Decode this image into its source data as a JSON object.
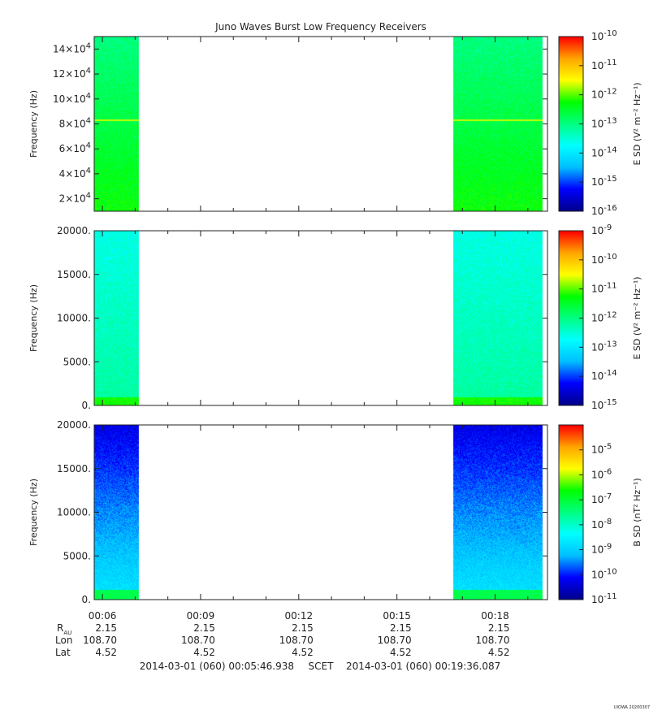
{
  "title": "Juno Waves Burst Low Frequency Receivers",
  "colors": {
    "axis": "#222222",
    "background": "#ffffff",
    "gap": "#ffffff"
  },
  "colormap": [
    "#00008b",
    "#0000ff",
    "#00bfff",
    "#00ffff",
    "#00ff80",
    "#00ff00",
    "#ffff00",
    "#ffa500",
    "#ff0000"
  ],
  "time_axis": {
    "start_min": 5.75,
    "end_min": 19.6,
    "major_ticks_min": [
      6,
      9,
      12,
      15,
      18
    ],
    "major_labels": [
      "00:06",
      "00:09",
      "00:12",
      "00:15",
      "00:18"
    ],
    "minor_ticks_min": [
      6,
      7,
      8,
      9,
      10,
      11,
      12,
      13,
      14,
      15,
      16,
      17,
      18,
      19
    ]
  },
  "ephemeris": {
    "row_labels": [
      "R",
      "Lon",
      "Lat"
    ],
    "r_subscript": "AU",
    "values": {
      "R": [
        "2.15",
        "2.15",
        "2.15",
        "2.15",
        "2.15"
      ],
      "Lon": [
        "108.70",
        "108.70",
        "108.70",
        "108.70",
        "108.70"
      ],
      "Lat": [
        "4.52",
        "4.52",
        "4.52",
        "4.52",
        "4.52"
      ]
    }
  },
  "footer": {
    "start": "2014-03-01 (060) 00:05:46.938",
    "mid": "SCET",
    "end": "2014-03-01 (060) 00:19:36.087",
    "stamp": "UIOWA 20200307"
  },
  "chart_data": [
    {
      "type": "heatmap",
      "title": "Juno Waves Burst Low Frequency Receivers",
      "ylabel": "Frequency (Hz)",
      "ylim": [
        10000,
        150000
      ],
      "yticks": [
        20000,
        40000,
        60000,
        80000,
        100000,
        120000,
        140000
      ],
      "ytick_labels": [
        {
          "base": "2×10",
          "exp": "4"
        },
        {
          "base": "4×10",
          "exp": "4"
        },
        {
          "base": "6×10",
          "exp": "4"
        },
        {
          "base": "8×10",
          "exp": "4"
        },
        {
          "base": "10×10",
          "exp": "4"
        },
        {
          "base": "12×10",
          "exp": "4"
        },
        {
          "base": "14×10",
          "exp": "4"
        }
      ],
      "data_intervals_min": [
        [
          5.75,
          7.1
        ],
        [
          16.7,
          19.45
        ]
      ],
      "level_range": [
        0.5,
        0.62
      ],
      "line_features": [
        {
          "freq_hz": 83000,
          "level": 0.72
        }
      ],
      "colorbar": {
        "label": "E SD (V² m⁻² Hz⁻¹)",
        "scale": "log",
        "range_exp": [
          -16,
          -10
        ],
        "tick_labels": [
          {
            "base": "10",
            "exp": "-16"
          },
          {
            "base": "10",
            "exp": "-15"
          },
          {
            "base": "10",
            "exp": "-14"
          },
          {
            "base": "10",
            "exp": "-13"
          },
          {
            "base": "10",
            "exp": "-12"
          },
          {
            "base": "10",
            "exp": "-11"
          },
          {
            "base": "10",
            "exp": "-10"
          }
        ]
      }
    },
    {
      "type": "heatmap",
      "ylabel": "Frequency (Hz)",
      "ylim": [
        0,
        20000
      ],
      "yticks": [
        0,
        5000,
        10000,
        15000,
        20000
      ],
      "ytick_labels": [
        {
          "base": "0.",
          "exp": ""
        },
        {
          "base": "5000.",
          "exp": ""
        },
        {
          "base": "10000.",
          "exp": ""
        },
        {
          "base": "15000.",
          "exp": ""
        },
        {
          "base": "20000.",
          "exp": ""
        }
      ],
      "data_intervals_min": [
        [
          5.75,
          7.1
        ],
        [
          16.7,
          19.45
        ]
      ],
      "level_range": [
        0.4,
        0.47
      ],
      "low_freq_enhancement": {
        "below_hz": 1000,
        "level": 0.63
      },
      "colorbar": {
        "label": "E SD (V² m⁻² Hz⁻¹)",
        "scale": "log",
        "range_exp": [
          -15,
          -9
        ],
        "tick_labels": [
          {
            "base": "10",
            "exp": "-15"
          },
          {
            "base": "10",
            "exp": "-14"
          },
          {
            "base": "10",
            "exp": "-13"
          },
          {
            "base": "10",
            "exp": "-12"
          },
          {
            "base": "10",
            "exp": "-11"
          },
          {
            "base": "10",
            "exp": "-10"
          },
          {
            "base": "10",
            "exp": "-9"
          }
        ]
      }
    },
    {
      "type": "heatmap",
      "ylabel": "Frequency (Hz)",
      "ylim": [
        0,
        20000
      ],
      "yticks": [
        0,
        5000,
        10000,
        15000,
        20000
      ],
      "ytick_labels": [
        {
          "base": "0.",
          "exp": ""
        },
        {
          "base": "5000.",
          "exp": ""
        },
        {
          "base": "10000.",
          "exp": ""
        },
        {
          "base": "15000.",
          "exp": ""
        },
        {
          "base": "20000.",
          "exp": ""
        }
      ],
      "data_intervals_min": [
        [
          5.75,
          7.1
        ],
        [
          16.7,
          19.45
        ]
      ],
      "level_range": [
        0.1,
        0.33
      ],
      "low_freq_enhancement": {
        "below_hz": 1200,
        "level": 0.55
      },
      "colorbar": {
        "label": "B SD (nT² Hz⁻¹)",
        "scale": "log",
        "range_exp": [
          -11,
          -4
        ],
        "tick_labels": [
          {
            "base": "10",
            "exp": "-11"
          },
          {
            "base": "10",
            "exp": "-10"
          },
          {
            "base": "10",
            "exp": "-9"
          },
          {
            "base": "10",
            "exp": "-8"
          },
          {
            "base": "10",
            "exp": "-7"
          },
          {
            "base": "10",
            "exp": "-6"
          },
          {
            "base": "10",
            "exp": "-5"
          }
        ]
      }
    }
  ]
}
